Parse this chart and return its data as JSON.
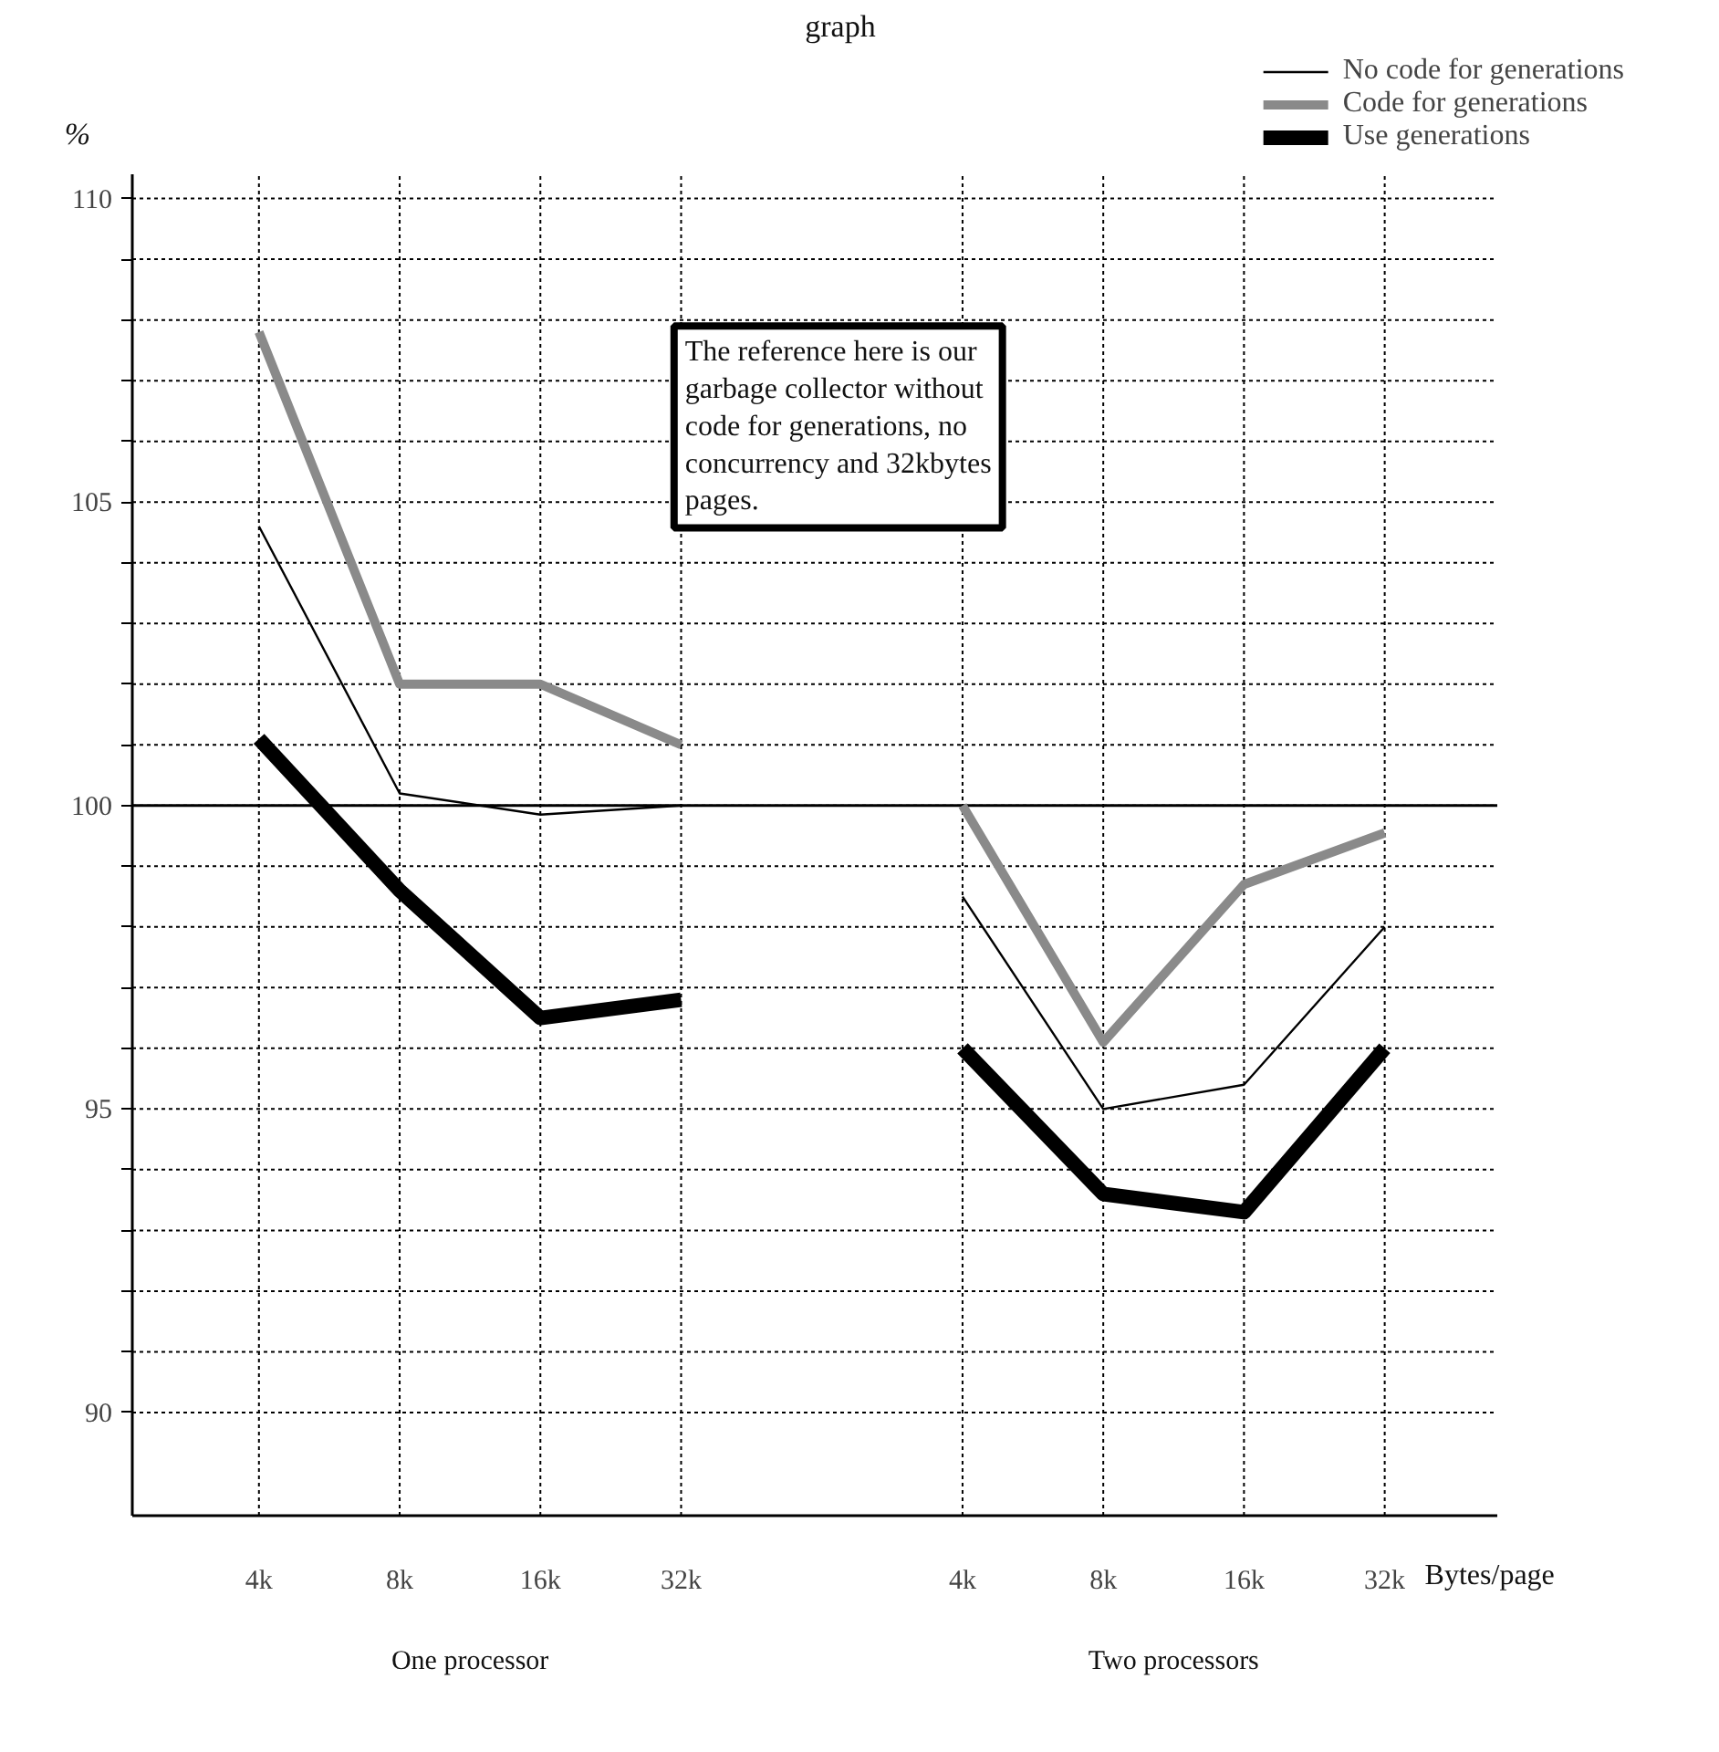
{
  "chart_data": {
    "type": "line",
    "title": "graph",
    "ylabel": "%",
    "xlabel": "Bytes/page",
    "categories": [
      "4k",
      "8k",
      "16k",
      "32k",
      null,
      "4k",
      "8k",
      "16k",
      "32k"
    ],
    "series": [
      {
        "name": "No code for generations",
        "color": "#000000",
        "values": [
          104.6,
          100.2,
          99.85,
          100.0,
          null,
          98.5,
          95.0,
          95.4,
          98.0
        ]
      },
      {
        "name": "Code for generations",
        "color": "#8a8a8a",
        "values": [
          107.8,
          102.0,
          102.0,
          101.0,
          null,
          100.0,
          96.1,
          98.7,
          99.55
        ]
      },
      {
        "name": "Use generations",
        "color": "#000000",
        "values": [
          101.1,
          98.6,
          96.5,
          96.8,
          null,
          96.0,
          93.6,
          93.3,
          96.0
        ]
      }
    ],
    "ylim": [
      88.3,
      110.4
    ],
    "yticks": [
      90,
      {
        "value": 91,
        "label": null
      },
      {
        "value": 92,
        "label": null
      },
      {
        "value": 93,
        "label": null
      },
      {
        "value": 94,
        "label": null
      },
      95,
      {
        "value": 96,
        "label": null
      },
      {
        "value": 97,
        "label": null
      },
      {
        "value": 98,
        "label": null
      },
      {
        "value": 99,
        "label": null
      },
      100,
      {
        "value": 101,
        "label": null
      },
      {
        "value": 102,
        "label": null
      },
      {
        "value": 103,
        "label": null
      },
      {
        "value": 104,
        "label": null
      },
      105,
      {
        "value": 106,
        "label": null
      },
      {
        "value": 107,
        "label": null
      },
      {
        "value": 108,
        "label": null
      },
      {
        "value": 109,
        "label": null
      },
      110
    ],
    "ref_lines": [
      {
        "axis": "y",
        "value": 100,
        "color": "#000000"
      }
    ],
    "annotations": [
      "The reference here is our garbage collector without code for generations, no concurrency and 32kbytes pages.",
      "One processor",
      "Two processors"
    ],
    "grid": true,
    "legend": "top right"
  }
}
